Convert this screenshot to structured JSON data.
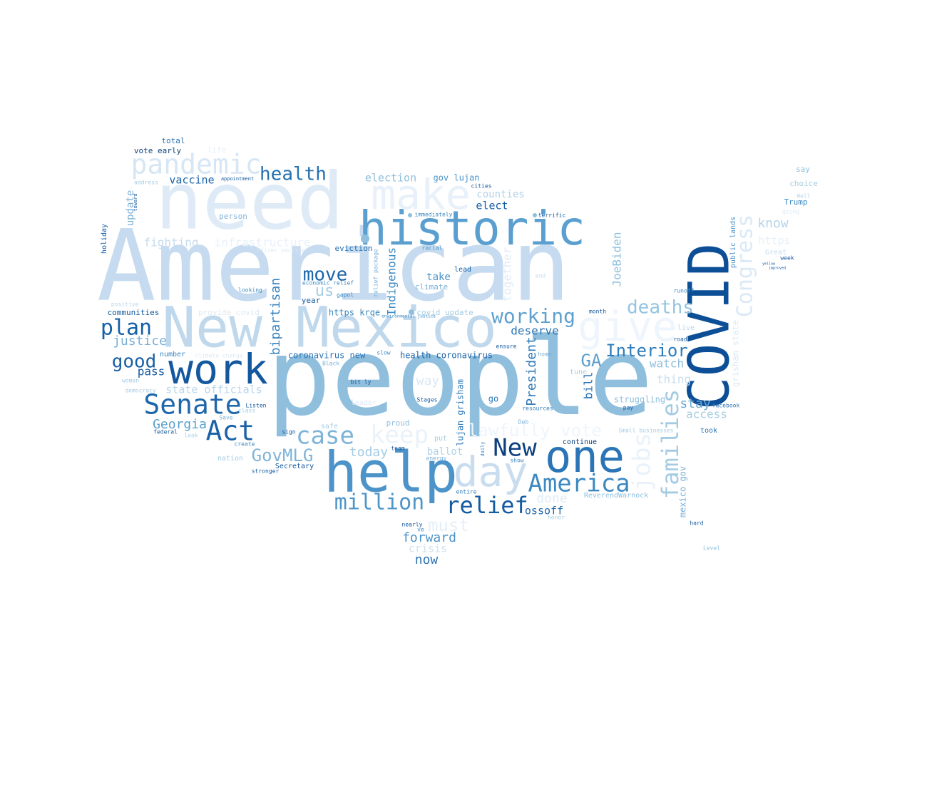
{
  "words": [
    {
      "text": "people",
      "color": "#8fbfdd"
    },
    {
      "text": "American",
      "color": "#c6dbef"
    },
    {
      "text": "need",
      "color": "#deebf7"
    },
    {
      "text": "New Mexico",
      "color": "#c0d8ec"
    },
    {
      "text": "historic",
      "color": "#5a9fcf"
    },
    {
      "text": "COVID",
      "color": "#0d4f96"
    },
    {
      "text": "help",
      "color": "#4b93c8"
    },
    {
      "text": "make",
      "color": "#e8f1fa"
    },
    {
      "text": "one",
      "color": "#2b75b6"
    },
    {
      "text": "give",
      "color": "#eef5fc"
    },
    {
      "text": "work",
      "color": "#13589f"
    },
    {
      "text": "day",
      "color": "#c9ddef"
    },
    {
      "text": "Senate",
      "color": "#1f67ac"
    },
    {
      "text": "pandemic",
      "color": "#d6e6f4"
    },
    {
      "text": "Congress",
      "color": "#dbe9f6"
    },
    {
      "text": "families",
      "color": "#a3cbe3"
    },
    {
      "text": "Act",
      "color": "#1a62a8"
    },
    {
      "text": "case",
      "color": "#7fb4d9"
    },
    {
      "text": "New",
      "color": "#0b3f7e"
    },
    {
      "text": "America",
      "color": "#3c89c2"
    },
    {
      "text": "relief",
      "color": "#135ba2"
    },
    {
      "text": "million",
      "color": "#4e95c9"
    },
    {
      "text": "jobs",
      "color": "#e9f2fa"
    },
    {
      "text": "keep",
      "color": "#eaf2fa"
    },
    {
      "text": "plan",
      "color": "#1560a8"
    },
    {
      "text": "deaths",
      "color": "#94c4e0"
    },
    {
      "text": "working",
      "color": "#5ea1cf"
    },
    {
      "text": "Interior",
      "color": "#2f7cba"
    },
    {
      "text": "health",
      "color": "#2471b1"
    },
    {
      "text": "good",
      "color": "#185fa6"
    },
    {
      "text": "move",
      "color": "#1c65aa"
    },
    {
      "text": "GovMLG",
      "color": "#7fb4d9"
    },
    {
      "text": "must",
      "color": "#e5eff9"
    },
    {
      "text": "lawfully vote",
      "color": "#eef5fc"
    },
    {
      "text": "GA",
      "color": "#5b9ecd"
    },
    {
      "text": "forward",
      "color": "#4b93c8"
    },
    {
      "text": "bipartisan",
      "color": "#3883be"
    },
    {
      "text": "Indigenous",
      "color": "#3e8ac3"
    },
    {
      "text": "President",
      "color": "#2f7bb9"
    },
    {
      "text": "Georgia",
      "color": "#5a9fcf"
    },
    {
      "text": "us",
      "color": "#a7cde4"
    },
    {
      "text": "justice",
      "color": "#7ab0d7"
    },
    {
      "text": "deserve",
      "color": "#2b74b3"
    },
    {
      "text": "today",
      "color": "#a4cbe4"
    },
    {
      "text": "way",
      "color": "#dae8f5"
    },
    {
      "text": "crisis",
      "color": "#cfe2f2"
    },
    {
      "text": "now",
      "color": "#2a72b2"
    },
    {
      "text": "done",
      "color": "#e0ecf7"
    },
    {
      "text": "know",
      "color": "#b6d4ea"
    },
    {
      "text": "stay",
      "color": "#6eaad4"
    },
    {
      "text": "access",
      "color": "#a7cde4"
    },
    {
      "text": "watch",
      "color": "#8fbfdd"
    },
    {
      "text": "thing",
      "color": "#c9ddef"
    },
    {
      "text": "bill",
      "color": "#2471b1"
    },
    {
      "text": "JoeBiden",
      "color": "#8fbfdd"
    },
    {
      "text": "together",
      "color": "#dfebf7"
    },
    {
      "text": "vaccine",
      "color": "#1a62a8"
    },
    {
      "text": "update",
      "color": "#7ab0d7"
    },
    {
      "text": "fighting",
      "color": "#c6dbef"
    },
    {
      "text": "infrastructure",
      "color": "#e8f1fa"
    },
    {
      "text": "pass",
      "color": "#13589f"
    },
    {
      "text": "state officials",
      "color": "#b9d6ec"
    },
    {
      "text": "election",
      "color": "#8fbfdd"
    },
    {
      "text": "gov lujan",
      "color": "#4b93c8"
    },
    {
      "text": "counties",
      "color": "#b2d2e8"
    },
    {
      "text": "elect",
      "color": "#1560a8"
    },
    {
      "text": "take",
      "color": "#4b93c8"
    },
    {
      "text": "https krqe",
      "color": "#3c89c2"
    },
    {
      "text": "coronavirus new",
      "color": "#2b74b3"
    },
    {
      "text": "health coronavirus",
      "color": "#1a62a8"
    },
    {
      "text": "ossoff",
      "color": "#1f67ac"
    },
    {
      "text": "ballot",
      "color": "#b0d1e8"
    },
    {
      "text": "lujan grisham",
      "color": "#2f7bb9"
    },
    {
      "text": "struggling",
      "color": "#8fbfdd"
    },
    {
      "text": "https",
      "color": "#e6f0f9"
    },
    {
      "text": "eviction",
      "color": "#2471b1"
    },
    {
      "text": "covid update",
      "color": "#a3cbe3"
    },
    {
      "text": "climate",
      "color": "#7ab0d7"
    },
    {
      "text": "communities",
      "color": "#13589f"
    },
    {
      "text": "mexico gov",
      "color": "#7ab0d7"
    },
    {
      "text": "grisham state",
      "color": "#dde9f5"
    },
    {
      "text": "public lands",
      "color": "#4b93c8"
    },
    {
      "text": "vote early",
      "color": "#0b3f7e"
    },
    {
      "text": "total",
      "color": "#2b74b3"
    },
    {
      "text": "life",
      "color": "#e3eef8"
    },
    {
      "text": "person",
      "color": "#7fb4d9"
    },
    {
      "text": "holiday",
      "color": "#13589f"
    },
    {
      "text": "year",
      "color": "#13589f"
    },
    {
      "text": "lead",
      "color": "#1560a8"
    },
    {
      "text": "Trump",
      "color": "#3c89c2"
    },
    {
      "text": "say",
      "color": "#8fbfdd"
    },
    {
      "text": "choice",
      "color": "#a7cde4"
    },
    {
      "text": "ReverendWarnock",
      "color": "#8fbfdd"
    },
    {
      "text": "Secretary",
      "color": "#13589f"
    },
    {
      "text": "proud",
      "color": "#8fbfdd"
    },
    {
      "text": "continue",
      "color": "#0b3f7e"
    },
    {
      "text": "number",
      "color": "#3c89c2"
    },
    {
      "text": "runoff",
      "color": "#3c89c2"
    },
    {
      "text": "took",
      "color": "#2b74b3"
    },
    {
      "text": "hard",
      "color": "#13589f"
    },
    {
      "text": "Level",
      "color": "#8fbfdd"
    },
    {
      "text": "go",
      "color": "#2f7bb9"
    },
    {
      "text": "put",
      "color": "#a7cde4"
    },
    {
      "text": "safe",
      "color": "#a7cde4"
    },
    {
      "text": "bit ly",
      "color": "#13589f"
    },
    {
      "text": "sign",
      "color": "#13589f"
    },
    {
      "text": "federal",
      "color": "#13589f"
    },
    {
      "text": "stronger",
      "color": "#13589f"
    },
    {
      "text": "nation",
      "color": "#a7cde4"
    },
    {
      "text": "leader",
      "color": "#dde9f5"
    },
    {
      "text": "Stages",
      "color": "#13589f"
    },
    {
      "text": "resources",
      "color": "#2f7bb9"
    },
    {
      "text": "Deb",
      "color": "#7ab0d7"
    },
    {
      "text": "pay",
      "color": "#13589f"
    },
    {
      "text": "facebook",
      "color": "#2b74b3"
    },
    {
      "text": "ensure",
      "color": "#13589f"
    },
    {
      "text": "home",
      "color": "#7ab0d7"
    },
    {
      "text": "tune",
      "color": "#a7cde4"
    },
    {
      "text": "entire",
      "color": "#2f7bb9"
    },
    {
      "text": "nearly",
      "color": "#13589f"
    },
    {
      "text": "team",
      "color": "#13589f"
    },
    {
      "text": "energy",
      "color": "#7ab0d7"
    },
    {
      "text": "Listen",
      "color": "#13589f"
    },
    {
      "text": "class",
      "color": "#a7cde4"
    },
    {
      "text": "Save",
      "color": "#7ab0d7"
    },
    {
      "text": "look",
      "color": "#a7cde4"
    },
    {
      "text": "create",
      "color": "#3c89c2"
    },
    {
      "text": "democracy",
      "color": "#a7cde4"
    },
    {
      "text": "woman",
      "color": "#a7cde4"
    },
    {
      "text": "positive",
      "color": "#b9d6ec"
    },
    {
      "text": "provide covid",
      "color": "#dde9f5"
    },
    {
      "text": "looking",
      "color": "#3c89c2"
    },
    {
      "text": "immediately",
      "color": "#3c89c2"
    },
    {
      "text": "terrific",
      "color": "#13589f"
    },
    {
      "text": "racial",
      "color": "#4b93c8"
    },
    {
      "text": "cities",
      "color": "#13589f"
    },
    {
      "text": "appointment",
      "color": "#13589f"
    },
    {
      "text": "address",
      "color": "#a7cde4"
    },
    {
      "text": "toward",
      "color": "#13589f"
    },
    {
      "text": "economic relief",
      "color": "#3c89c2"
    },
    {
      "text": "gapol",
      "color": "#3c89c2"
    },
    {
      "text": "climate change",
      "color": "#dde9f5"
    },
    {
      "text": "Black",
      "color": "#7ab0d7"
    },
    {
      "text": "slow",
      "color": "#3c89c2"
    },
    {
      "text": "Small businesses",
      "color": "#a7cde4"
    },
    {
      "text": "month",
      "color": "#13589f"
    },
    {
      "text": "road",
      "color": "#13589f"
    },
    {
      "text": "live",
      "color": "#b9d6ec"
    },
    {
      "text": "week",
      "color": "#13589f"
    },
    {
      "text": "Great",
      "color": "#c6dbef"
    },
    {
      "text": "Well",
      "color": "#b9d6ec"
    },
    {
      "text": "going",
      "color": "#dde9f5"
    },
    {
      "text": "honor",
      "color": "#a7cde4"
    },
    {
      "text": "show",
      "color": "#3c89c2"
    },
    {
      "text": "daily",
      "color": "#3c89c2"
    },
    {
      "text": "relief package",
      "color": "#7ab0d7"
    },
    {
      "text": "environmental justice",
      "color": "#3c89c2"
    },
    {
      "text": "Pfizer vaccine",
      "color": "#dde9f5"
    },
    {
      "text": "end",
      "color": "#c6dbef"
    },
    {
      "text": "ve",
      "color": "#3c89c2"
    },
    {
      "text": "yellow",
      "color": "#13589f"
    },
    {
      "text": "improved",
      "color": "#13589f"
    }
  ]
}
